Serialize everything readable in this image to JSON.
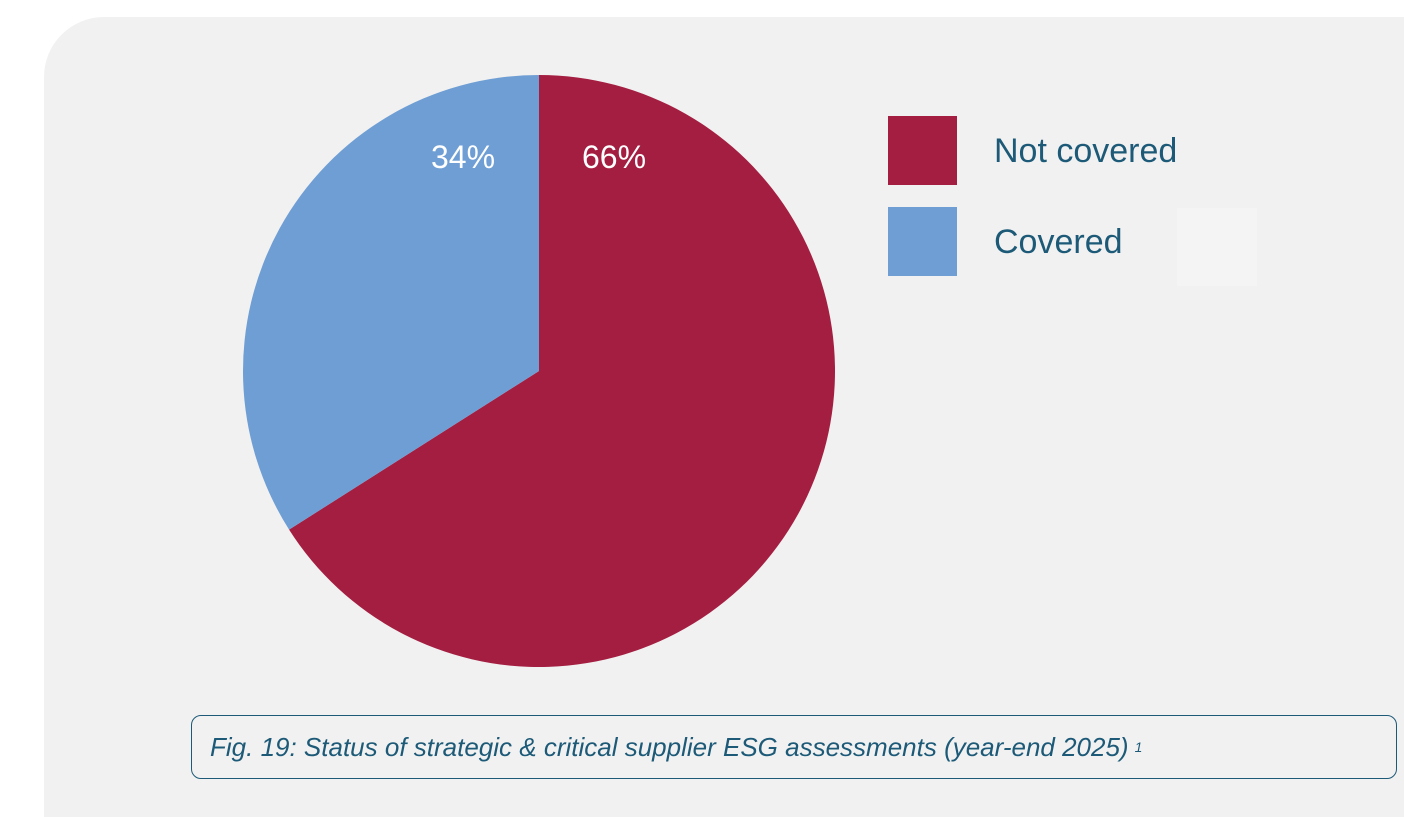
{
  "chart_data": {
    "type": "pie",
    "title": "Fig. 19: Status of strategic & critical supplier ESG assessments (year-end 2025)",
    "footnote_marker": "1",
    "slices": [
      {
        "name": "Not covered",
        "value": 66,
        "label": "66%",
        "color": "#a41e41"
      },
      {
        "name": "Covered",
        "value": 34,
        "label": "34%",
        "color": "#6e9ed4"
      }
    ],
    "start_angle": "12 o'clock",
    "direction": "clockwise",
    "legend": {
      "placement": "top-right",
      "items": [
        {
          "label": "Not covered",
          "color": "#a41e41"
        },
        {
          "label": "Covered",
          "color": "#6e9ed4"
        }
      ]
    }
  },
  "colors": {
    "panel_background": "#f1f1f1",
    "text_accent": "#1d5a78",
    "slice_label": "#ffffff"
  }
}
